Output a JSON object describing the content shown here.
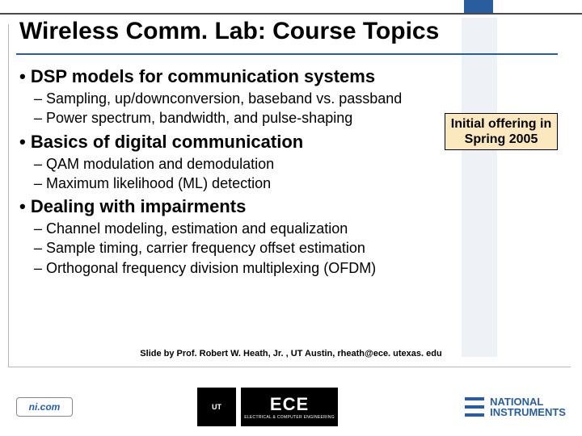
{
  "colors": {
    "accent": "#2a5d9e",
    "callout_bg": "#fbe8bf",
    "border_gray": "#b7b7b7",
    "text": "#000000"
  },
  "title": "Wireless Comm. Lab: Course Topics",
  "sections": [
    {
      "heading": "• DSP models for communication systems",
      "items": [
        "– Sampling, up/downconversion, baseband vs. passband",
        "– Power spectrum, bandwidth, and pulse-shaping"
      ]
    },
    {
      "heading": "• Basics of digital communication",
      "items": [
        "– QAM modulation and demodulation",
        "– Maximum likelihood (ML) detection"
      ]
    },
    {
      "heading": "• Dealing with impairments",
      "items": [
        "– Channel modeling, estimation and equalization",
        "– Sample timing, carrier frequency offset estimation",
        "– Orthogonal frequency division multiplexing (OFDM)"
      ]
    }
  ],
  "callout": "Initial offering in Spring 2005",
  "attribution": "Slide by Prof. Robert W. Heath, Jr. , UT Austin, rheath@ece. utexas. edu",
  "footer": {
    "ni_badge": "ni.com",
    "ut_logo_text": "UT",
    "ece_big": "ECE",
    "ece_small": "ELECTRICAL & COMPUTER ENGINEERING",
    "ni_line1": "NATIONAL",
    "ni_line2": "INSTRUMENTS"
  }
}
